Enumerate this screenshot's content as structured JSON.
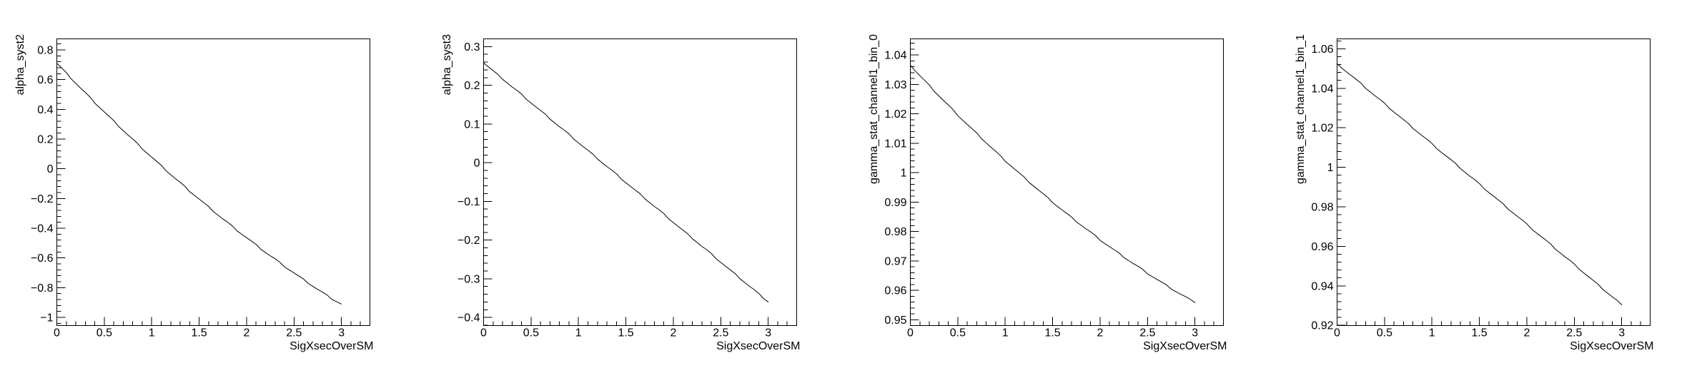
{
  "colors": {
    "background": "#ffffff",
    "axis": "#000000",
    "curve": "#000000"
  },
  "chart_data": [
    {
      "type": "line",
      "id": "alpha_syst2",
      "ylabel": "alpha_syst2",
      "xlabel": "SigXsecOverSM",
      "grid": false,
      "legend": null,
      "xlim": [
        0,
        3.3
      ],
      "ylim": [
        -1.055,
        0.874
      ],
      "xticks": {
        "values": [
          0,
          0.5,
          1,
          1.5,
          2,
          2.5,
          3
        ],
        "labels": [
          "0",
          "0.5",
          "1",
          "1.5",
          "2",
          "2.5",
          "3"
        ],
        "minor_step": 0.1
      },
      "yticks": {
        "values": [
          0.8,
          0.6,
          0.4,
          0.2,
          0,
          -0.2,
          -0.4,
          -0.6,
          -0.8,
          -1
        ],
        "labels": [
          "0.8",
          "0.6",
          "0.4",
          "0.2",
          "0",
          "−0.2",
          "−0.4",
          "−0.6",
          "−0.8",
          "−1"
        ],
        "minor_step": 0.04
      },
      "x": [
        0,
        0.1,
        0.2,
        0.3,
        0.4,
        0.5,
        0.6,
        0.7,
        0.8,
        0.9,
        1.0,
        1.1,
        1.2,
        1.3,
        1.4,
        1.5,
        1.6,
        1.7,
        1.8,
        1.9,
        2.0,
        2.1,
        2.2,
        2.3,
        2.4,
        2.5,
        2.6,
        2.7,
        2.8,
        2.9,
        3.0
      ],
      "y": [
        0.71,
        0.643,
        0.576,
        0.511,
        0.446,
        0.383,
        0.32,
        0.258,
        0.197,
        0.137,
        0.078,
        0.02,
        -0.038,
        -0.094,
        -0.15,
        -0.204,
        -0.258,
        -0.311,
        -0.363,
        -0.414,
        -0.464,
        -0.513,
        -0.562,
        -0.609,
        -0.656,
        -0.701,
        -0.746,
        -0.79,
        -0.833,
        -0.875,
        -0.91
      ]
    },
    {
      "type": "line",
      "id": "alpha_syst3",
      "ylabel": "alpha_syst3",
      "xlabel": "SigXsecOverSM",
      "grid": false,
      "legend": null,
      "xlim": [
        0,
        3.3
      ],
      "ylim": [
        -0.421,
        0.32
      ],
      "xticks": {
        "values": [
          0,
          0.5,
          1,
          1.5,
          2,
          2.5,
          3
        ],
        "labels": [
          "0",
          "0.5",
          "1",
          "1.5",
          "2",
          "2.5",
          "3"
        ],
        "minor_step": 0.1
      },
      "yticks": {
        "values": [
          0.3,
          0.2,
          0.1,
          0,
          -0.1,
          -0.2,
          -0.3,
          -0.4
        ],
        "labels": [
          "0.3",
          "0.2",
          "0.1",
          "0",
          "−0.1",
          "−0.2",
          "−0.3",
          "−0.4"
        ],
        "minor_step": 0.02
      },
      "x": [
        0,
        0.1,
        0.2,
        0.3,
        0.4,
        0.5,
        0.6,
        0.7,
        0.8,
        0.9,
        1.0,
        1.1,
        1.2,
        1.3,
        1.4,
        1.5,
        1.6,
        1.7,
        1.8,
        1.9,
        2.0,
        2.1,
        2.2,
        2.3,
        2.4,
        2.5,
        2.6,
        2.7,
        2.8,
        2.9,
        3.0
      ],
      "y": [
        0.258,
        0.237,
        0.217,
        0.196,
        0.176,
        0.155,
        0.134,
        0.114,
        0.093,
        0.073,
        0.052,
        0.031,
        0.011,
        -0.01,
        -0.03,
        -0.051,
        -0.072,
        -0.092,
        -0.113,
        -0.133,
        -0.154,
        -0.175,
        -0.195,
        -0.216,
        -0.236,
        -0.257,
        -0.278,
        -0.298,
        -0.319,
        -0.339,
        -0.36
      ]
    },
    {
      "type": "line",
      "id": "gamma_stat_channel1_bin_0",
      "ylabel": "gamma_stat_channel1_bin_0",
      "xlabel": "SigXsecOverSM",
      "grid": false,
      "legend": null,
      "xlim": [
        0,
        3.3
      ],
      "ylim": [
        0.948,
        1.0455
      ],
      "xticks": {
        "values": [
          0,
          0.5,
          1,
          1.5,
          2,
          2.5,
          3
        ],
        "labels": [
          "0",
          "0.5",
          "1",
          "1.5",
          "2",
          "2.5",
          "3"
        ],
        "minor_step": 0.1
      },
      "yticks": {
        "values": [
          1.04,
          1.03,
          1.02,
          1.01,
          1,
          0.99,
          0.98,
          0.97,
          0.96,
          0.95
        ],
        "labels": [
          "1.04",
          "1.03",
          "1.02",
          "1.01",
          "1",
          "0.99",
          "0.98",
          "0.97",
          "0.96",
          "0.95"
        ],
        "minor_step": 0.002
      },
      "x": [
        0,
        0.1,
        0.2,
        0.3,
        0.4,
        0.5,
        0.6,
        0.7,
        0.8,
        0.9,
        1.0,
        1.1,
        1.2,
        1.3,
        1.4,
        1.5,
        1.6,
        1.7,
        1.8,
        1.9,
        2.0,
        2.1,
        2.2,
        2.3,
        2.4,
        2.5,
        2.6,
        2.7,
        2.8,
        2.9,
        3.0
      ],
      "y": [
        1.0365,
        1.033,
        1.0296,
        1.0262,
        1.0229,
        1.0196,
        1.0164,
        1.0133,
        1.0102,
        1.0071,
        1.0041,
        1.0012,
        0.9983,
        0.9955,
        0.9927,
        0.99,
        0.9873,
        0.9847,
        0.9822,
        0.9797,
        0.9772,
        0.9748,
        0.9725,
        0.9702,
        0.968,
        0.9658,
        0.9637,
        0.9616,
        0.9596,
        0.9577,
        0.9558
      ]
    },
    {
      "type": "line",
      "id": "gamma_stat_channel1_bin_1",
      "ylabel": "gamma_stat_channel1_bin_1",
      "xlabel": "SigXsecOverSM",
      "grid": false,
      "legend": null,
      "xlim": [
        0,
        3.3
      ],
      "ylim": [
        0.9199,
        1.065
      ],
      "xticks": {
        "values": [
          0,
          0.5,
          1,
          1.5,
          2,
          2.5,
          3
        ],
        "labels": [
          "0",
          "0.5",
          "1",
          "1.5",
          "2",
          "2.5",
          "3"
        ],
        "minor_step": 0.1
      },
      "yticks": {
        "values": [
          1.06,
          1.04,
          1.02,
          1,
          0.98,
          0.96,
          0.94,
          0.92
        ],
        "labels": [
          "1.06",
          "1.04",
          "1.02",
          "1",
          "0.98",
          "0.96",
          "0.94",
          "0.92"
        ],
        "minor_step": 0.004
      },
      "x": [
        0,
        0.1,
        0.2,
        0.3,
        0.4,
        0.5,
        0.6,
        0.7,
        0.8,
        0.9,
        1.0,
        1.1,
        1.2,
        1.3,
        1.4,
        1.5,
        1.6,
        1.7,
        1.8,
        1.9,
        2.0,
        2.1,
        2.2,
        2.3,
        2.4,
        2.5,
        2.6,
        2.7,
        2.8,
        2.9,
        3.0
      ],
      "y": [
        1.0525,
        1.0484,
        1.0444,
        1.0403,
        1.0362,
        1.0322,
        1.0281,
        1.024,
        1.0199,
        1.0159,
        1.0118,
        1.0077,
        1.0037,
        0.9996,
        0.9955,
        0.9915,
        0.9874,
        0.9833,
        0.9792,
        0.9752,
        0.9711,
        0.967,
        0.963,
        0.9589,
        0.9548,
        0.9508,
        0.9467,
        0.9426,
        0.9385,
        0.9345,
        0.9304
      ]
    }
  ]
}
